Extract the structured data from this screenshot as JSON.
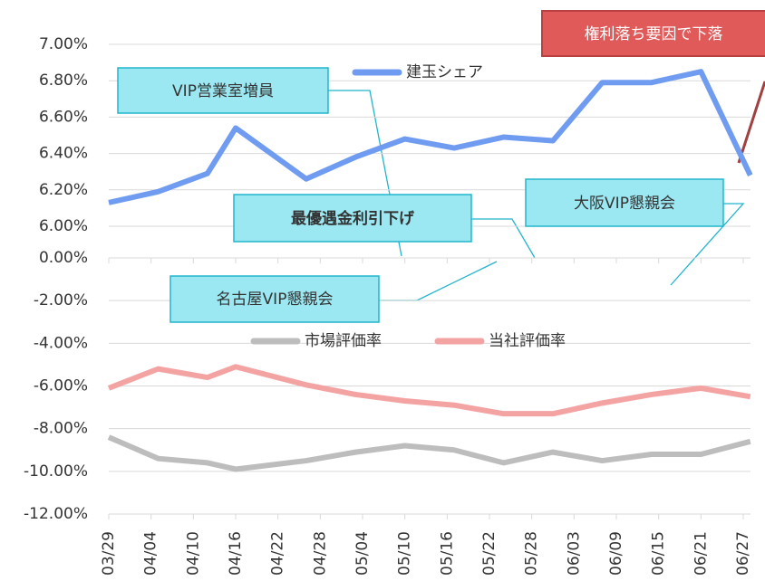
{
  "chart_data": [
    {
      "type": "line",
      "x": [
        "03/29",
        "04/05",
        "04/12",
        "04/16",
        "04/26",
        "05/03",
        "05/10",
        "05/17",
        "05/24",
        "05/31",
        "06/07",
        "06/14",
        "06/21",
        "06/28"
      ],
      "series": [
        {
          "name": "建玉シェア",
          "color": "#6f9cf0",
          "values": [
            6.13,
            6.19,
            6.29,
            6.54,
            6.26,
            6.38,
            6.48,
            6.43,
            6.49,
            6.47,
            6.79,
            6.79,
            6.85,
            6.28
          ]
        }
      ],
      "ylim": [
        6.0,
        7.0
      ],
      "yticks": [
        {
          "value": 6.0,
          "label": "6.00%"
        },
        {
          "value": 6.2,
          "label": "6.20%"
        },
        {
          "value": 6.4,
          "label": "6.40%"
        },
        {
          "value": 6.6,
          "label": "6.60%"
        },
        {
          "value": 6.8,
          "label": "6.80%"
        },
        {
          "value": 7.0,
          "label": "7.00%"
        }
      ],
      "grid": true
    },
    {
      "type": "line",
      "x": [
        "03/29",
        "04/05",
        "04/12",
        "04/16",
        "04/26",
        "05/03",
        "05/10",
        "05/17",
        "05/24",
        "05/31",
        "06/07",
        "06/14",
        "06/21",
        "06/28"
      ],
      "series": [
        {
          "name": "市場評価率",
          "color": "#bdbdbd",
          "values": [
            -8.4,
            -9.4,
            -9.6,
            -9.9,
            -9.5,
            -9.1,
            -8.8,
            -9.0,
            -9.6,
            -9.1,
            -9.5,
            -9.2,
            -9.2,
            -8.6
          ]
        },
        {
          "name": "当社評価率",
          "color": "#f4a3a3",
          "values": [
            -6.1,
            -5.2,
            -5.6,
            -5.1,
            -5.95,
            -6.4,
            -6.7,
            -6.9,
            -7.3,
            -7.3,
            -6.8,
            -6.4,
            -6.1,
            -6.5
          ]
        }
      ],
      "ylim": [
        -12,
        0
      ],
      "yticks": [
        {
          "value": 0,
          "label": "0.00%"
        },
        {
          "value": -2,
          "label": "-2.00%"
        },
        {
          "value": -4,
          "label": "-4.00%"
        },
        {
          "value": -6,
          "label": "-6.00%"
        },
        {
          "value": -8,
          "label": "-8.00%"
        },
        {
          "value": -10,
          "label": "-10.00%"
        },
        {
          "value": -12,
          "label": "-12.00%"
        }
      ],
      "xticks": [
        "03/29",
        "04/04",
        "04/10",
        "04/16",
        "04/22",
        "04/28",
        "05/04",
        "05/10",
        "05/16",
        "05/22",
        "05/28",
        "06/03",
        "06/09",
        "06/15",
        "06/21",
        "06/27"
      ],
      "grid": true
    }
  ],
  "annotations": [
    "VIP営業室増員",
    "最優遇金利引下げ",
    "大阪VIP懇親会",
    "名古屋VIP懇親会",
    "権利落ち要因で下落"
  ]
}
